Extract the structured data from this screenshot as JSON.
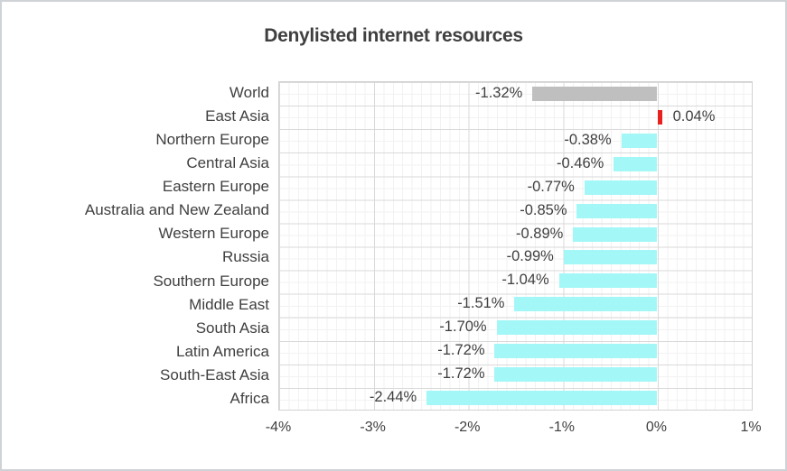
{
  "title": "Denylisted internet resources",
  "chart_data": {
    "type": "bar",
    "orientation": "horizontal",
    "title": "Denylisted internet resources",
    "xlabel": "",
    "ylabel": "",
    "xlim": [
      -4,
      1
    ],
    "x_tick_labels": [
      "-4%",
      "-3%",
      "-2%",
      "-1%",
      "0%",
      "1%"
    ],
    "grid": "major and minor gridlines on",
    "legend": "none",
    "value_format": "percent",
    "items": [
      {
        "label": "World",
        "value": -1.32,
        "display": "-1.32%",
        "color": "#bfbfbf"
      },
      {
        "label": "East Asia",
        "value": 0.04,
        "display": "0.04%",
        "color": "#e8211f"
      },
      {
        "label": "Northern Europe",
        "value": -0.38,
        "display": "-0.38%",
        "color": "#a3f7f7"
      },
      {
        "label": "Central Asia",
        "value": -0.46,
        "display": "-0.46%",
        "color": "#a3f7f7"
      },
      {
        "label": "Eastern Europe",
        "value": -0.77,
        "display": "-0.77%",
        "color": "#a3f7f7"
      },
      {
        "label": "Australia and New Zealand",
        "value": -0.85,
        "display": "-0.85%",
        "color": "#a3f7f7"
      },
      {
        "label": "Western Europe",
        "value": -0.89,
        "display": "-0.89%",
        "color": "#a3f7f7"
      },
      {
        "label": "Russia",
        "value": -0.99,
        "display": "-0.99%",
        "color": "#a3f7f7"
      },
      {
        "label": "Southern Europe",
        "value": -1.04,
        "display": "-1.04%",
        "color": "#a3f7f7"
      },
      {
        "label": "Middle East",
        "value": -1.51,
        "display": "-1.51%",
        "color": "#a3f7f7"
      },
      {
        "label": "South Asia",
        "value": -1.7,
        "display": "-1.70%",
        "color": "#a3f7f7"
      },
      {
        "label": "Latin America",
        "value": -1.72,
        "display": "-1.72%",
        "color": "#a3f7f7"
      },
      {
        "label": "South-East Asia",
        "value": -1.72,
        "display": "-1.72%",
        "color": "#a3f7f7"
      },
      {
        "label": "Africa",
        "value": -2.44,
        "display": "-2.44%",
        "color": "#a3f7f7"
      }
    ]
  },
  "colors": {
    "text": "#3f3f3f",
    "grid_major": "#d9d9d9",
    "grid_minor": "#f2f2f2",
    "plot_border": "#d2d2d2",
    "frame_border": "#cfd2d6",
    "background": "#ffffff",
    "bar_default": "#a3f7f7",
    "bar_world": "#bfbfbf",
    "bar_positive": "#e8211f"
  }
}
